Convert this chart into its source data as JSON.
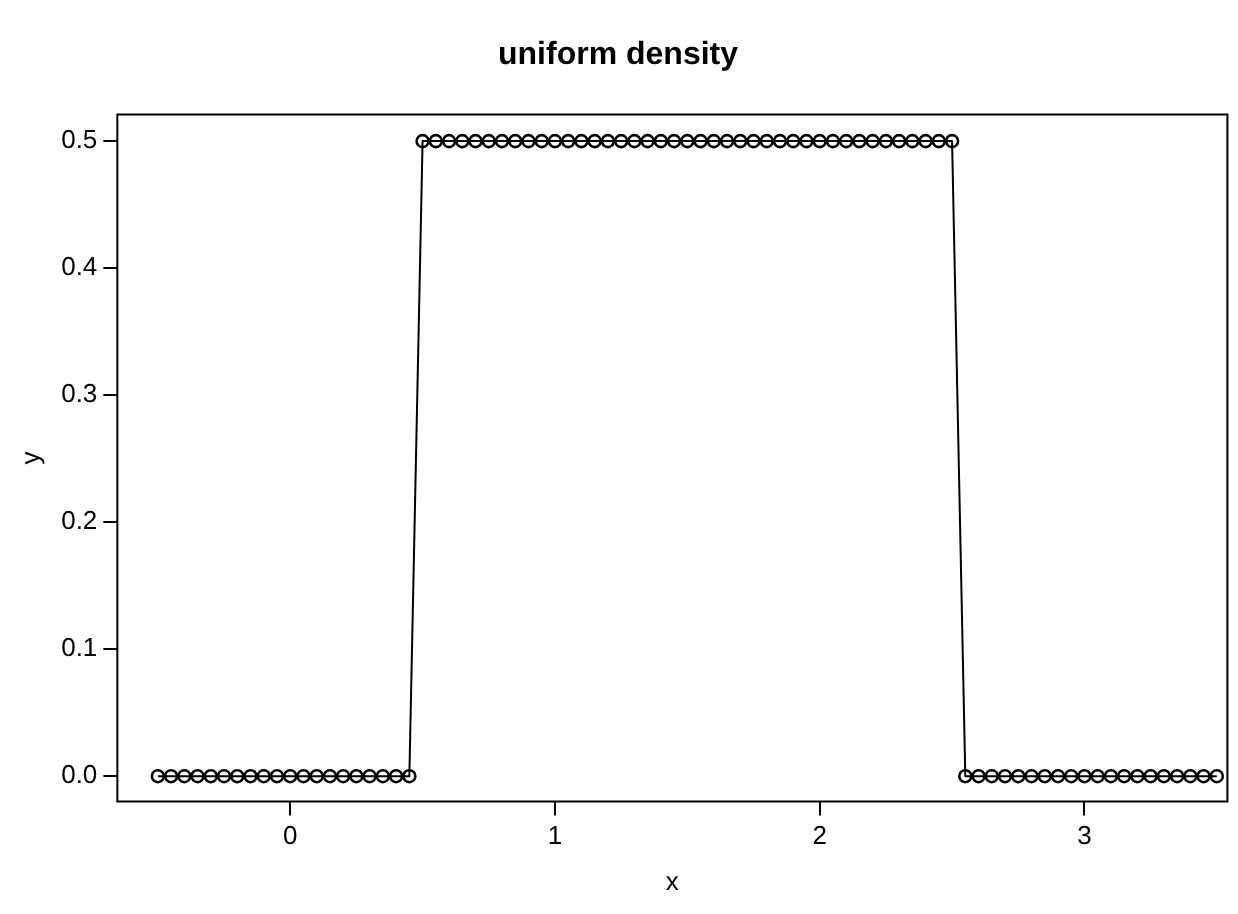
{
  "chart_data": {
    "type": "line",
    "title": "uniform density",
    "xlabel": "x",
    "ylabel": "y",
    "x": [
      -0.5,
      -0.45,
      -0.4,
      -0.35,
      -0.3,
      -0.25,
      -0.2,
      -0.15,
      -0.1,
      -0.05,
      0,
      0.05,
      0.1,
      0.15,
      0.2,
      0.25,
      0.3,
      0.35,
      0.4,
      0.45,
      0.5,
      0.55,
      0.6,
      0.65,
      0.7,
      0.75,
      0.8,
      0.85,
      0.9,
      0.95,
      1,
      1.05,
      1.1,
      1.15,
      1.2,
      1.25,
      1.3,
      1.35,
      1.4,
      1.45,
      1.5,
      1.55,
      1.6,
      1.65,
      1.7,
      1.75,
      1.8,
      1.85,
      1.9,
      1.95,
      2,
      2.05,
      2.1,
      2.15,
      2.2,
      2.25,
      2.3,
      2.35,
      2.4,
      2.45,
      2.5,
      2.55,
      2.6,
      2.65,
      2.7,
      2.75,
      2.8,
      2.85,
      2.9,
      2.95,
      3,
      3.05,
      3.1,
      3.15,
      3.2,
      3.25,
      3.3,
      3.35,
      3.4,
      3.45,
      3.5
    ],
    "series": [
      {
        "color": "#000000",
        "values": [
          0,
          0,
          0,
          0,
          0,
          0,
          0,
          0,
          0,
          0,
          0,
          0,
          0,
          0,
          0,
          0,
          0,
          0,
          0,
          0,
          0.5,
          0.5,
          0.5,
          0.5,
          0.5,
          0.5,
          0.5,
          0.5,
          0.5,
          0.5,
          0.5,
          0.5,
          0.5,
          0.5,
          0.5,
          0.5,
          0.5,
          0.5,
          0.5,
          0.5,
          0.5,
          0.5,
          0.5,
          0.5,
          0.5,
          0.5,
          0.5,
          0.5,
          0.5,
          0.5,
          0.5,
          0.5,
          0.5,
          0.5,
          0.5,
          0.5,
          0.5,
          0.5,
          0.5,
          0.5,
          0.5,
          0,
          0,
          0,
          0,
          0,
          0,
          0,
          0,
          0,
          0,
          0,
          0,
          0,
          0,
          0,
          0,
          0,
          0,
          0,
          0
        ]
      }
    ],
    "xlim": [
      -0.653,
      3.54
    ],
    "xticks": [
      0,
      1,
      2,
      3
    ],
    "ylim": [
      -0.02,
      0.521
    ],
    "yticks": [
      {
        "value": 0,
        "label": "0.0"
      },
      0.1,
      0.2,
      0.3,
      0.4,
      0.5
    ],
    "marker": "circle",
    "line_style": "solid",
    "grid": false,
    "legend": false
  }
}
